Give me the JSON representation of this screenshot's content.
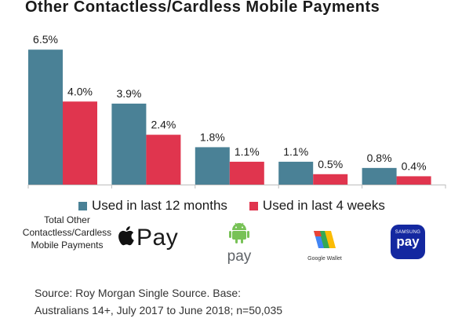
{
  "chart_data": {
    "type": "bar",
    "title": "Other Contactless/Cardless Mobile Payments",
    "categories": [
      "Total Other Contactless/Cardless Mobile Payments",
      "Apple Pay",
      "Android Pay",
      "Google Wallet",
      "Samsung Pay"
    ],
    "series": [
      {
        "name": "Used in last 12 months",
        "color": "#4a8196",
        "values": [
          6.5,
          3.9,
          1.8,
          1.1,
          0.8
        ],
        "labels": [
          "6.5%",
          "3.9%",
          "1.8%",
          "1.1%",
          "0.8%"
        ]
      },
      {
        "name": "Used in last 4 weeks",
        "color": "#e0354e",
        "values": [
          4.0,
          2.4,
          1.1,
          0.5,
          0.4
        ],
        "labels": [
          "4.0%",
          "2.4%",
          "1.1%",
          "0.5%",
          "0.4%"
        ]
      }
    ],
    "ylim": [
      0,
      7
    ],
    "grid": false,
    "legend_position": "bottom"
  },
  "category_label": "Total Other Contactless/Cardless Mobile Payments",
  "logos": {
    "apple_pay": {
      "icon": "apple-icon",
      "text": "Pay"
    },
    "android_pay": {
      "icon": "android-icon",
      "text": "pay"
    },
    "google_wallet": {
      "icon": "google-wallet-icon",
      "text": "Google Wallet"
    },
    "samsung_pay": {
      "brand": "SAMSUNG",
      "text": "pay"
    }
  },
  "source": {
    "line1": "Source: Roy Morgan Single Source. Base:",
    "line2": "Australians 14+, July 2017 to June 2018; n=50,035"
  }
}
